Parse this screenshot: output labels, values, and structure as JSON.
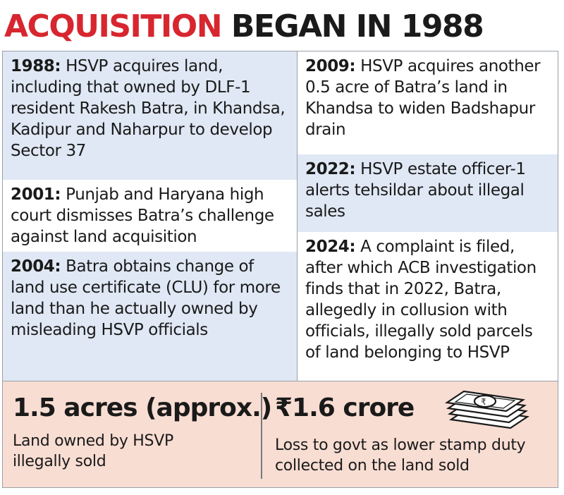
{
  "headline": {
    "part_red": "ACQUISITION",
    "part_dark": "BEGAN IN 1988"
  },
  "timeline": {
    "left": [
      {
        "year": "1988:",
        "text": " HSVP acquires land, including that owned by DLF-1 resident Rakesh Batra, in Khandsa, Kadipur and Naharpur to develop Sector 37"
      },
      {
        "year": "2001:",
        "text": " Punjab and Haryana high court dismisses Batra’s challenge against land acquisition"
      },
      {
        "year": "2004:",
        "text": " Batra obtains change of land use certificate (CLU) for more land than he actually owned by misleading HSVP officials"
      }
    ],
    "right": [
      {
        "year": "2009:",
        "text": " HSVP acquires another 0.5 acre of Batra’s land in Khandsa to widen Badshapur drain"
      },
      {
        "year": "2022:",
        "text": " HSVP estate officer-1 alerts tehsildar about illegal sales"
      },
      {
        "year": "2024:",
        "text": " A complaint is filed, after which ACB investigation finds that in 2022, Batra, allegedly in collusion with officials, illegally sold parcels of land belonging to HSVP"
      }
    ]
  },
  "stats": [
    {
      "value": "1.5 acres (approx.)",
      "label": "Land owned by HSVP illegally sold"
    },
    {
      "value": "₹1.6 crore",
      "label": "Loss to govt as lower stamp duty collected on the land sold"
    }
  ],
  "icons": {
    "money": "banknote-stack-icon"
  },
  "colors": {
    "accent_red": "#d7262f",
    "cell_blue": "#dfe8f4",
    "stats_bg": "#f8ddd3"
  }
}
